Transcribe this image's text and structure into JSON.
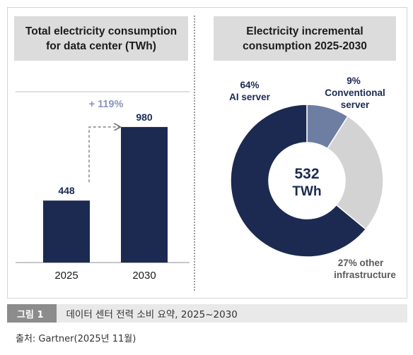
{
  "chart_data": [
    {
      "type": "bar",
      "title_lines": [
        "Total electricity consumption",
        "for data center (TWh)"
      ],
      "categories": [
        "2025",
        "2030"
      ],
      "values": [
        448,
        980
      ],
      "value_labels": [
        "448",
        "980"
      ],
      "annotation": "+ 119%",
      "ylim": [
        0,
        1000
      ],
      "colors": {
        "bar": "#1c2a52",
        "annotation": "#8a95b8",
        "arrow": "#777777"
      }
    },
    {
      "type": "pie",
      "title_lines": [
        "Electricity incremental",
        "consumption 2025-2030"
      ],
      "center_value": "532",
      "center_unit": "TWh",
      "slices": [
        {
          "label": "Conventional server",
          "percent": "9%",
          "value": 9,
          "color": "#6e7ea3"
        },
        {
          "label": "other infrastructure",
          "percent": "27%",
          "value": 27,
          "color": "#d3d3d3"
        },
        {
          "label": "AI server",
          "percent": "64%",
          "value": 64,
          "color": "#1c2a52"
        }
      ],
      "labels": {
        "ai": [
          "64%",
          "AI server"
        ],
        "conventional": [
          "9%",
          "Conventional",
          "server"
        ],
        "other": [
          "27% other",
          "infrastructure"
        ]
      }
    }
  ],
  "caption": {
    "figure_label": "그림 1",
    "text": "데이터 센터 전력 소비 요약, 2025~2030",
    "source": "출처: Gartner(2025년 11월)"
  }
}
